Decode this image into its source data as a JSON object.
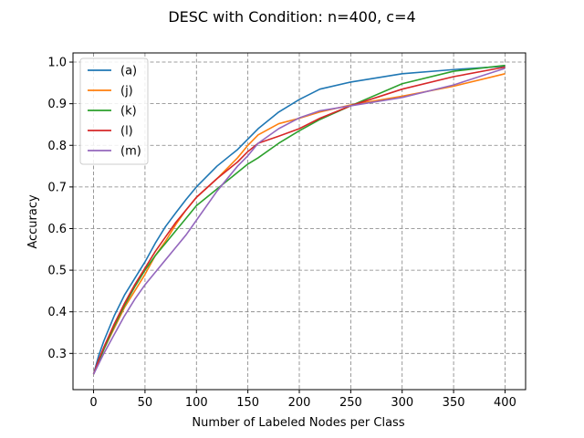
{
  "chart_data": {
    "type": "line",
    "title": "DESC with Condition: n=400, c=4",
    "xlabel": "Number of Labeled Nodes per Class",
    "ylabel": "Accuracy",
    "xlim": [
      -20,
      420
    ],
    "ylim": [
      0.213,
      1.022
    ],
    "xticks": [
      0,
      50,
      100,
      150,
      200,
      250,
      300,
      350,
      400
    ],
    "yticks": [
      0.3,
      0.4,
      0.5,
      0.6,
      0.7,
      0.8,
      0.9,
      1.0
    ],
    "xtick_labels": [
      "0",
      "50",
      "100",
      "150",
      "200",
      "250",
      "300",
      "350",
      "400"
    ],
    "ytick_labels": [
      "0.3",
      "0.4",
      "0.5",
      "0.6",
      "0.7",
      "0.8",
      "0.9",
      "1.0"
    ],
    "grid": true,
    "grid_style": "dashed",
    "legend_position": "upper-left",
    "x": [
      0,
      5,
      10,
      20,
      30,
      40,
      50,
      60,
      70,
      80,
      90,
      100,
      120,
      140,
      150,
      160,
      180,
      200,
      220,
      250,
      300,
      350,
      400
    ],
    "series": [
      {
        "name": "(a)",
        "color": "#1f77b4",
        "values": [
          0.25,
          0.295,
          0.33,
          0.39,
          0.44,
          0.48,
          0.52,
          0.565,
          0.605,
          0.638,
          0.67,
          0.7,
          0.75,
          0.79,
          0.815,
          0.84,
          0.88,
          0.91,
          0.935,
          0.952,
          0.972,
          0.982,
          0.99
        ]
      },
      {
        "name": "(j)",
        "color": "#ff7f0e",
        "values": [
          0.25,
          0.28,
          0.31,
          0.36,
          0.41,
          0.45,
          0.49,
          0.535,
          0.57,
          0.61,
          0.645,
          0.675,
          0.72,
          0.77,
          0.8,
          0.825,
          0.852,
          0.865,
          0.88,
          0.897,
          0.918,
          0.942,
          0.972
        ]
      },
      {
        "name": "(k)",
        "color": "#2ca02c",
        "values": [
          0.25,
          0.28,
          0.31,
          0.365,
          0.415,
          0.46,
          0.5,
          0.535,
          0.565,
          0.595,
          0.625,
          0.655,
          0.695,
          0.735,
          0.755,
          0.77,
          0.805,
          0.835,
          0.862,
          0.895,
          0.948,
          0.978,
          0.992
        ]
      },
      {
        "name": "(l)",
        "color": "#d62728",
        "values": [
          0.25,
          0.285,
          0.315,
          0.37,
          0.42,
          0.465,
          0.505,
          0.545,
          0.58,
          0.615,
          0.645,
          0.675,
          0.72,
          0.76,
          0.785,
          0.805,
          0.822,
          0.84,
          0.865,
          0.895,
          0.935,
          0.965,
          0.988
        ]
      },
      {
        "name": "(m)",
        "color": "#9467bd",
        "values": [
          0.25,
          0.275,
          0.3,
          0.345,
          0.39,
          0.43,
          0.465,
          0.495,
          0.525,
          0.555,
          0.585,
          0.62,
          0.69,
          0.75,
          0.775,
          0.805,
          0.84,
          0.866,
          0.883,
          0.895,
          0.915,
          0.945,
          0.985
        ]
      }
    ]
  }
}
